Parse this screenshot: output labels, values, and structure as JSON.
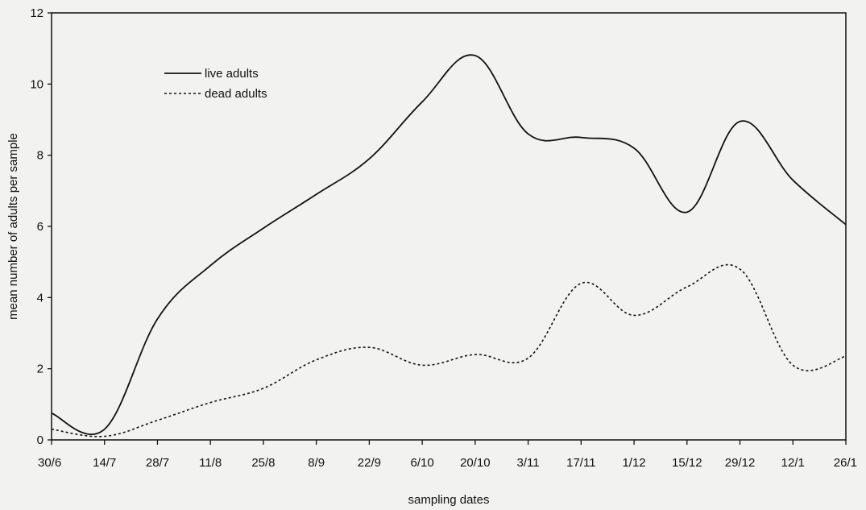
{
  "chart_data": {
    "type": "line",
    "title": "",
    "xlabel": "sampling dates",
    "ylabel": "mean number of adults per sample",
    "categories": [
      "30/6",
      "14/7",
      "28/7",
      "11/8",
      "25/8",
      "8/9",
      "22/9",
      "6/10",
      "20/10",
      "3/11",
      "17/11",
      "1/12",
      "15/12",
      "29/12",
      "12/1",
      "26/1"
    ],
    "ylim": [
      0,
      12
    ],
    "yticks": [
      0,
      2,
      4,
      6,
      8,
      10,
      12
    ],
    "grid": false,
    "legend_position": "top-left",
    "series": [
      {
        "name": "live adults",
        "style": "solid",
        "color": "#111111",
        "values": [
          0.75,
          0.3,
          3.4,
          4.9,
          5.95,
          6.9,
          7.9,
          9.5,
          10.8,
          8.6,
          8.5,
          8.2,
          6.4,
          8.95,
          7.3,
          6.05
        ]
      },
      {
        "name": "dead adults",
        "style": "dotted",
        "color": "#111111",
        "values": [
          0.3,
          0.1,
          0.55,
          1.05,
          1.45,
          2.25,
          2.6,
          2.1,
          2.4,
          2.3,
          4.4,
          3.5,
          4.3,
          4.8,
          2.1,
          2.35
        ]
      }
    ]
  }
}
